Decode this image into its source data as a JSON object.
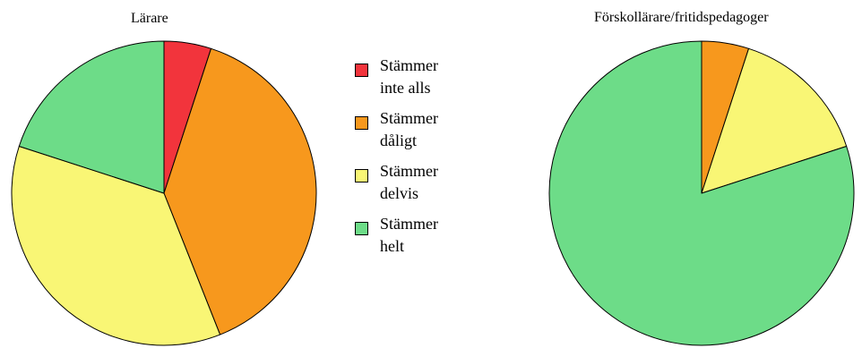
{
  "chart_data": [
    {
      "type": "pie",
      "title": "Lärare",
      "categories": [
        "Stämmer inte alls",
        "Stämmer dåligt",
        "Stämmer delvis",
        "Stämmer helt"
      ],
      "values": [
        5,
        39,
        36,
        20
      ],
      "colors": [
        "#f2343c",
        "#f7981d",
        "#f9f675",
        "#6ddc88"
      ]
    },
    {
      "type": "pie",
      "title": "Förskollärare/fritidspedagoger",
      "categories": [
        "Stämmer inte alls",
        "Stämmer dåligt",
        "Stämmer delvis",
        "Stämmer helt"
      ],
      "values": [
        0,
        5,
        15,
        80
      ],
      "colors": [
        "#f2343c",
        "#f7981d",
        "#f9f675",
        "#6ddc88"
      ]
    }
  ],
  "legend": {
    "items": [
      {
        "line1": "Stämmer",
        "line2": "inte alls",
        "color": "#f2343c"
      },
      {
        "line1": "Stämmer",
        "line2": "dåligt",
        "color": "#f7981d"
      },
      {
        "line1": "Stämmer",
        "line2": "delvis",
        "color": "#f9f675"
      },
      {
        "line1": "Stämmer",
        "line2": "helt",
        "color": "#6ddc88"
      }
    ]
  }
}
